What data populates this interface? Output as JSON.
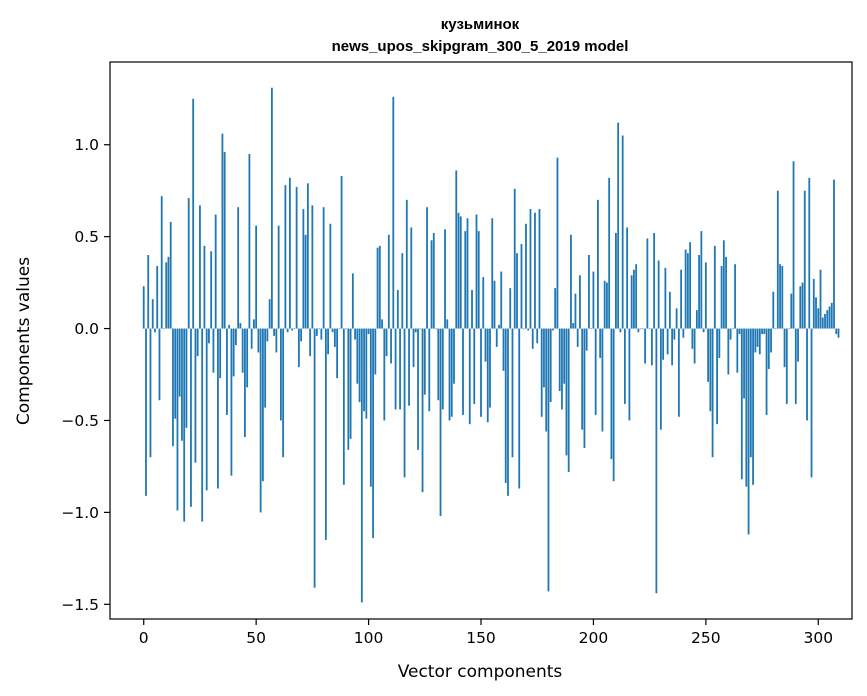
{
  "chart_data": {
    "type": "bar",
    "title_line1": "кузьминок",
    "title_line2": "news_upos_skipgram_300_5_2019 model",
    "xlabel": "Vector components",
    "ylabel": "Components values",
    "xlim": [
      -15,
      315
    ],
    "ylim": [
      -1.58,
      1.45
    ],
    "xticks": [
      0,
      50,
      100,
      150,
      200,
      250,
      300
    ],
    "xtick_labels": [
      "0",
      "50",
      "100",
      "150",
      "200",
      "250",
      "300"
    ],
    "yticks": [
      -1.5,
      -1.0,
      -0.5,
      0.0,
      0.5,
      1.0
    ],
    "ytick_labels": [
      "−1.5",
      "−1.0",
      "−0.5",
      "0.0",
      "0.5",
      "1.0"
    ],
    "bar_color": "#1f77b4",
    "values": [
      0.23,
      -0.91,
      0.4,
      -0.7,
      0.16,
      -0.02,
      0.34,
      -0.39,
      0.72,
      0.0,
      0.36,
      0.39,
      0.58,
      -0.64,
      -0.49,
      -0.99,
      -0.37,
      -0.61,
      -1.05,
      -0.54,
      0.71,
      -0.97,
      1.25,
      -0.73,
      -0.15,
      0.67,
      -1.05,
      0.45,
      -0.88,
      -0.08,
      0.42,
      -0.24,
      0.62,
      -0.87,
      -0.27,
      1.06,
      0.96,
      -0.47,
      0.02,
      -0.8,
      -0.26,
      -0.09,
      0.66,
      0.03,
      -0.24,
      -0.59,
      -0.32,
      0.95,
      -0.11,
      0.05,
      0.56,
      -0.13,
      -1.0,
      -0.83,
      -0.43,
      -0.07,
      0.16,
      1.31,
      -0.04,
      -0.13,
      0.56,
      -0.5,
      -0.7,
      0.78,
      -0.02,
      0.82,
      -0.01,
      0.0,
      0.77,
      -0.21,
      -0.07,
      0.65,
      0.51,
      0.79,
      -0.15,
      0.67,
      -1.41,
      -0.04,
      0.0,
      -0.06,
      0.66,
      -1.15,
      -0.14,
      0.57,
      -0.02,
      -0.1,
      -0.27,
      0.0,
      0.83,
      -0.85,
      0.0,
      -0.66,
      -0.6,
      0.3,
      -0.06,
      -0.3,
      -0.4,
      -1.49,
      -0.45,
      -0.49,
      -0.03,
      -0.86,
      -1.14,
      -0.25,
      0.44,
      0.45,
      0.05,
      -0.5,
      -0.15,
      0.51,
      -0.19,
      1.26,
      -0.44,
      0.21,
      -0.44,
      0.41,
      -0.81,
      0.7,
      -0.42,
      0.55,
      -0.21,
      -0.02,
      -0.66,
      0.0,
      -0.89,
      -0.36,
      0.66,
      -0.45,
      0.48,
      0.52,
      0.0,
      -0.39,
      -1.02,
      -0.44,
      0.54,
      0.05,
      -0.5,
      -0.48,
      -0.3,
      0.86,
      0.63,
      0.61,
      -0.47,
      0.53,
      0.6,
      -0.52,
      0.21,
      -0.41,
      0.62,
      0.53,
      -0.48,
      0.28,
      -0.18,
      -0.51,
      -0.43,
      0.6,
      0.26,
      -0.1,
      0.02,
      0.31,
      -0.23,
      -0.84,
      -0.91,
      0.22,
      -0.7,
      0.76,
      0.41,
      -0.87,
      0.46,
      0.0,
      0.57,
      -0.01,
      0.65,
      -0.11,
      0.63,
      -0.08,
      0.65,
      -0.48,
      -0.32,
      -0.56,
      -1.43,
      -0.4,
      -0.01,
      0.22,
      0.93,
      -0.34,
      -0.44,
      -0.3,
      -0.69,
      -0.78,
      0.51,
      0.03,
      0.19,
      -0.1,
      0.29,
      -0.55,
      -0.65,
      -0.12,
      0.4,
      0.0,
      0.31,
      -0.47,
      0.7,
      -0.16,
      -0.56,
      0.26,
      0.25,
      0.82,
      -0.71,
      -0.83,
      0.52,
      1.12,
      -0.02,
      1.05,
      -0.41,
      0.55,
      -0.5,
      0.29,
      0.32,
      0.35,
      -0.02,
      0.0,
      0.0,
      -0.19,
      0.49,
      0.0,
      -0.2,
      0.52,
      -1.44,
      0.37,
      -0.55,
      -0.17,
      0.33,
      -0.14,
      0.2,
      -0.2,
      -0.06,
      0.11,
      -0.48,
      0.32,
      -0.05,
      0.43,
      0.41,
      0.47,
      -0.11,
      -0.19,
      0.1,
      0.4,
      0.53,
      -0.02,
      0.36,
      -0.29,
      -0.45,
      -0.7,
      0.45,
      -0.52,
      -0.16,
      0.34,
      0.48,
      0.39,
      -0.25,
      -0.06,
      0.0,
      0.35,
      -0.24,
      -0.03,
      -0.82,
      -0.38,
      -0.86,
      -1.12,
      -0.7,
      -0.85,
      -0.13,
      -0.1,
      -0.14,
      -0.03,
      -0.03,
      -0.47,
      -0.22,
      -0.13,
      0.2,
      0.0,
      0.75,
      0.35,
      0.34,
      -0.21,
      -0.41,
      0.0,
      0.19,
      0.91,
      -0.41,
      -0.18,
      0.23,
      0.25,
      0.75,
      -0.5,
      0.82,
      -0.81,
      0.27,
      0.17,
      0.11,
      0.32,
      0.06,
      0.08,
      0.1,
      0.12,
      0.14,
      0.81,
      -0.03,
      -0.05
    ]
  }
}
